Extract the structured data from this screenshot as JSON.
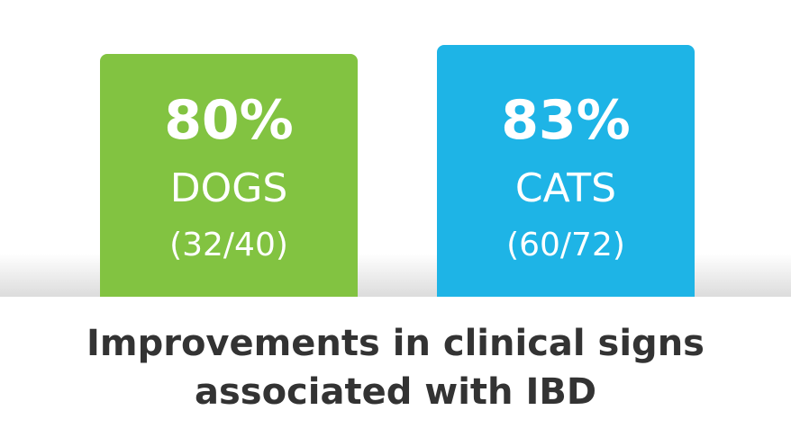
{
  "cards": [
    {
      "value": "80%",
      "label": "DOGS",
      "count": "(32/40)"
    },
    {
      "value": "83%",
      "label": "CATS",
      "count": "(60/72)"
    }
  ],
  "caption": [
    "Improvements in clinical signs",
    "associated with IBD"
  ]
}
